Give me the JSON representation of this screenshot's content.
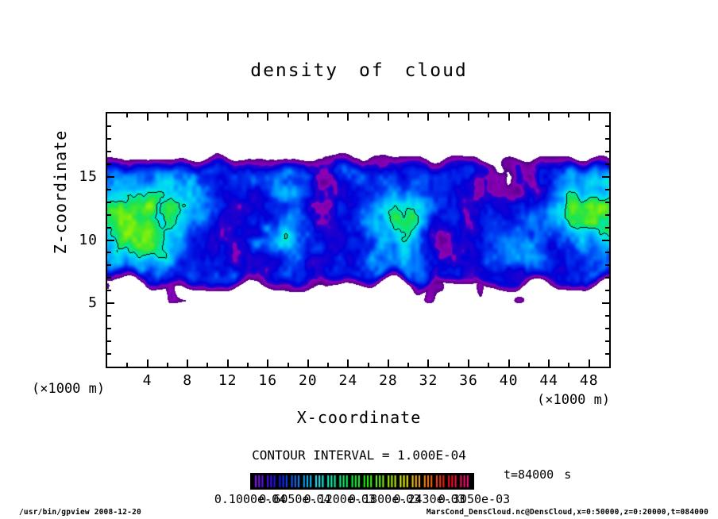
{
  "title": "density of cloud",
  "contour_text": "CONTOUR INTERVAL = 1.000E-04",
  "time_label": "t=84000 s",
  "footer": {
    "left": "/usr/bin/gpview  2008-12-20",
    "right": "MarsCond_DensCloud.nc@DensCloud,x=0:50000,z=0:20000,t=084000"
  },
  "axes": {
    "x": {
      "label": "X-coordinate",
      "unit": "(×1000 m)",
      "range": [
        0,
        50
      ],
      "major_ticks": [
        4,
        8,
        12,
        16,
        20,
        24,
        28,
        32,
        36,
        40,
        44,
        48
      ],
      "minor_step": 2
    },
    "z": {
      "label": "Z-coordinate",
      "unit": "(×1000 m)",
      "range": [
        0,
        20
      ],
      "major_ticks": [
        5,
        10,
        15
      ],
      "minor_step": 1
    }
  },
  "colorbar": {
    "labels": [
      "0.1000e-04",
      "0.6050e-04",
      "0.1200e-03",
      "0.1800e-03",
      "0.2430e-03",
      "0.3050e-03"
    ],
    "stripe_hue_start": 278,
    "stripe_hue_span": 318,
    "background": "#000000"
  },
  "chart_data": {
    "type": "heatmap",
    "subtype": "filled_contour",
    "title": "density of cloud",
    "xlabel": "X-coordinate (x1000 m)",
    "ylabel": "Z-coordinate (x1000 m)",
    "x_range": [
      0,
      50
    ],
    "z_range": [
      0,
      20
    ],
    "contour_interval": "1.000E-04",
    "time": "t=84000 s",
    "cutoff": 0.105,
    "contour_level": 0.75,
    "palette_stops": [
      [
        0.105,
        "#4a007e"
      ],
      [
        0.17,
        "#7a00aa"
      ],
      [
        0.22,
        "#8e00b4"
      ],
      [
        0.245,
        "#2a00cc"
      ],
      [
        0.34,
        "#0000d8"
      ],
      [
        0.46,
        "#0033f0"
      ],
      [
        0.55,
        "#0077ff"
      ],
      [
        0.64,
        "#00b4ff"
      ],
      [
        0.71,
        "#00e0f0"
      ],
      [
        0.76,
        "#00e6b0"
      ],
      [
        0.82,
        "#17e357"
      ],
      [
        0.9,
        "#55ea20"
      ],
      [
        1.0,
        "#a8f400"
      ]
    ],
    "band": {
      "z_top": 17.05,
      "z_top_noise": 0.45,
      "top_fade": 1.9,
      "z_bottom": 6.0,
      "z_bottom_noise": 1.0,
      "bottom_fade": 1.5
    },
    "base_value": 0.42,
    "noise_amps": [
      0.17,
      0.1,
      0.05
    ],
    "noise_freqs": [
      0.33,
      0.95,
      2.2
    ],
    "features": [
      {
        "x": 2.5,
        "z": 11.3,
        "sx": 4.6,
        "sz": 3.6,
        "a": 0.52
      },
      {
        "x": 48.8,
        "z": 11.8,
        "sx": 4.0,
        "sz": 2.7,
        "a": 0.5
      },
      {
        "x": 8.0,
        "z": 13.5,
        "sx": 2.5,
        "sz": 2.0,
        "a": 0.18
      },
      {
        "x": 17.3,
        "z": 10.1,
        "sx": 2.1,
        "sz": 1.0,
        "a": 0.26
      },
      {
        "x": 20.8,
        "z": 9.3,
        "sx": 1.3,
        "sz": 0.75,
        "a": 0.22
      },
      {
        "x": 14.8,
        "z": 9.7,
        "sx": 0.7,
        "sz": 0.55,
        "a": 0.22
      },
      {
        "x": 15.9,
        "z": 11.0,
        "sx": 0.6,
        "sz": 0.5,
        "a": 0.2
      },
      {
        "x": 29.0,
        "z": 11.6,
        "sx": 3.0,
        "sz": 2.6,
        "a": 0.2
      },
      {
        "x": 27.3,
        "z": 8.6,
        "sx": 1.7,
        "sz": 1.2,
        "a": 0.18
      },
      {
        "x": 38.5,
        "z": 9.3,
        "sx": 2.4,
        "sz": 1.5,
        "a": 0.16
      },
      {
        "x": 35.8,
        "z": 14.6,
        "sx": 5.5,
        "sz": 1.4,
        "a": -0.2
      },
      {
        "x": 23.5,
        "z": 14.0,
        "sx": 2.6,
        "sz": 1.2,
        "a": -0.15
      },
      {
        "x": 42.5,
        "z": 13.2,
        "sx": 2.2,
        "sz": 1.5,
        "a": -0.16
      },
      {
        "x": 33.0,
        "z": 9.6,
        "sx": 1.8,
        "sz": 1.2,
        "a": -0.14
      },
      {
        "x": 40.5,
        "z": 7.0,
        "sx": 2.6,
        "sz": 1.0,
        "a": -0.16
      },
      {
        "x": 11.8,
        "z": 15.2,
        "sx": 1.6,
        "sz": 0.9,
        "a": -0.12
      },
      {
        "x": 21.0,
        "z": 6.5,
        "sx": 1.1,
        "sz": 0.6,
        "a": -0.3
      },
      {
        "x": 29.8,
        "z": 6.2,
        "sx": 1.5,
        "sz": 0.55,
        "a": -0.28
      },
      {
        "x": 36.2,
        "z": 5.9,
        "sx": 1.2,
        "sz": 0.5,
        "a": -0.26
      },
      {
        "x": 6.5,
        "z": 16.9,
        "sx": 1.2,
        "sz": 0.6,
        "a": -0.3
      },
      {
        "x": 26.0,
        "z": 16.2,
        "sx": 2.0,
        "sz": 0.7,
        "a": -0.12
      }
    ]
  }
}
